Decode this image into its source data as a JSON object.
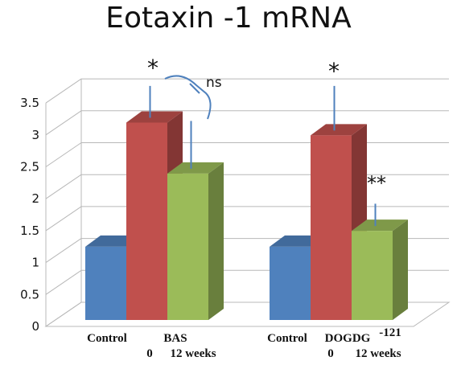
{
  "chart_data": {
    "type": "bar",
    "title": "Eotaxin -1 mRNA",
    "ylim": [
      0,
      3.5
    ],
    "y_ticks": [
      "0",
      "0.5",
      "1",
      "1.5",
      "2",
      "2.5",
      "3",
      "3.5"
    ],
    "grid": true,
    "legend": "none",
    "groups": [
      {
        "label_row1": [
          "Control",
          "BAS"
        ],
        "label_row2": [
          "0",
          "12 weeks"
        ],
        "bars": [
          {
            "value": 1.15,
            "color": "#4f81bd"
          },
          {
            "value": 3.1,
            "error": 0.5,
            "color": "#c0504d"
          },
          {
            "value": 2.3,
            "error": 0.75,
            "color": "#9bbb59"
          }
        ]
      },
      {
        "label_row1": [
          "Control",
          "DOGDG",
          "-121"
        ],
        "label_row2": [
          "0",
          "12 weeks"
        ],
        "bars": [
          {
            "value": 1.15,
            "color": "#4f81bd"
          },
          {
            "value": 2.9,
            "error": 0.7,
            "color": "#c0504d"
          },
          {
            "value": 1.4,
            "error": 0.35,
            "color": "#9bbb59"
          }
        ]
      }
    ],
    "annotations": [
      {
        "text": "*",
        "group": 0,
        "bar": 1
      },
      {
        "text": "ns",
        "group": 0,
        "bar": 2
      },
      {
        "text": "*",
        "group": 1,
        "bar": 1
      },
      {
        "text": "**",
        "group": 1,
        "bar": 2
      }
    ]
  }
}
